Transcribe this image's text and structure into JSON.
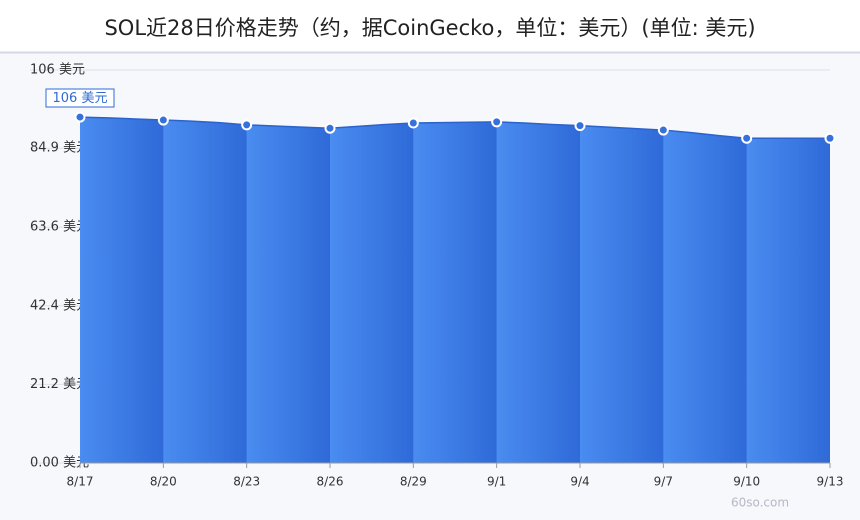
{
  "chart_data": {
    "type": "area",
    "title": "SOL近28日价格走势（约，据CoinGecko，单位：美元）(单位: 美元)",
    "categories": [
      "8/17",
      null,
      null,
      "8/20",
      null,
      null,
      "8/23",
      null,
      null,
      "8/26",
      null,
      null,
      "8/29",
      null,
      null,
      "9/1",
      null,
      null,
      "9/4",
      null,
      null,
      "9/7",
      null,
      null,
      "9/10",
      null,
      null,
      "9/13"
    ],
    "values": [
      93.3,
      93.1,
      92.8,
      92.5,
      92.2,
      91.8,
      91.2,
      90.9,
      90.6,
      90.3,
      90.8,
      91.3,
      91.7,
      91.8,
      91.9,
      92.0,
      91.7,
      91.3,
      91.0,
      90.6,
      90.2,
      89.8,
      89.1,
      88.3,
      87.6,
      87.6,
      87.6,
      87.6
    ],
    "color": "#3f7ee6",
    "ylim": [
      0,
      106
    ],
    "yticks": [
      {
        "value": 0,
        "label": "0.00 美元"
      },
      {
        "value": 21.2,
        "label": "21.2 美元"
      },
      {
        "value": 42.4,
        "label": "42.4 美元"
      },
      {
        "value": 63.6,
        "label": "63.6 美元"
      },
      {
        "value": 84.9,
        "label": "84.9 美元"
      },
      {
        "value": 106,
        "label": "106 美元"
      }
    ],
    "grid": true,
    "annotation": "106 美元",
    "watermark": "60so.com"
  }
}
